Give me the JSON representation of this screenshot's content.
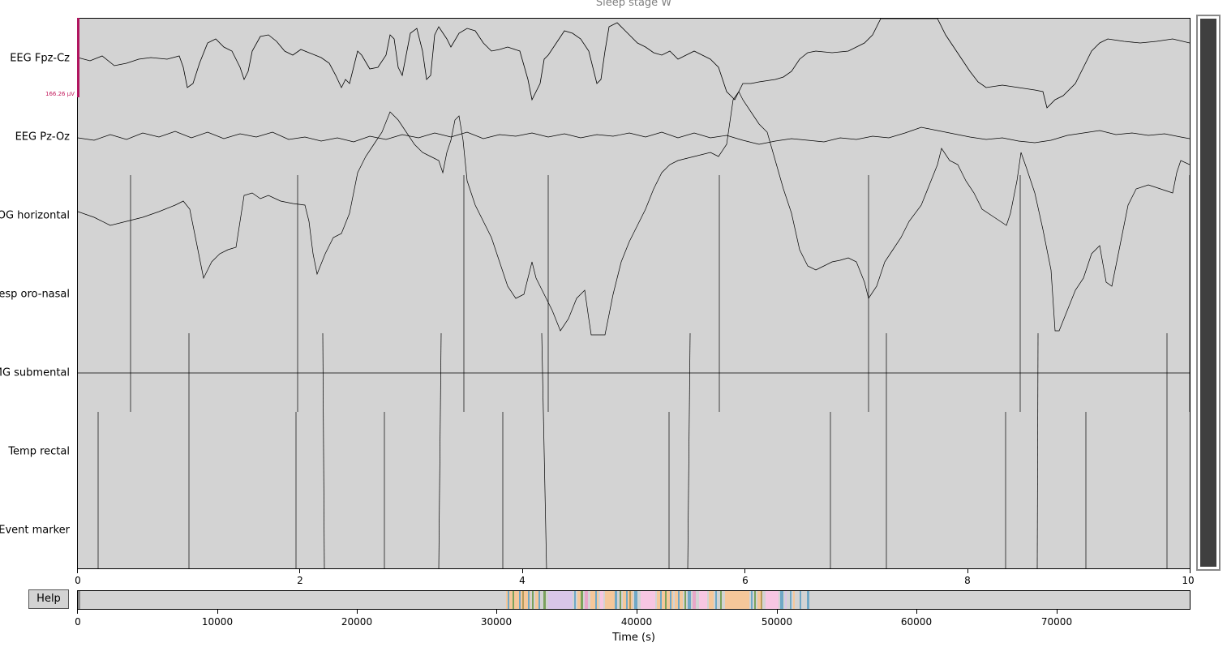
{
  "title": "Sleep stage W",
  "channels": [
    "EEG Fpz-Cz",
    "EEG Pz-Oz",
    "EOG horizontal",
    "Resp oro-nasal",
    "EMG submental",
    "Temp rectal",
    "Event marker"
  ],
  "scale_label": "166.26 µV",
  "help_label": "Help",
  "colors": {
    "background": "#d3d3d3",
    "trace": "#000000",
    "scale": "#b0155f",
    "scrollbar": "#3f3f3f"
  },
  "chart_data": {
    "type": "line",
    "x_label": "",
    "x_ticks": [
      "0",
      "2",
      "4",
      "6",
      "8",
      "10"
    ],
    "x_range": [
      0,
      10
    ],
    "overview": {
      "x_label": "Time (s)",
      "x_ticks": [
        "0",
        "10000",
        "20000",
        "30000",
        "40000",
        "50000",
        "60000",
        "70000"
      ],
      "x_range": [
        0,
        79500
      ]
    }
  }
}
